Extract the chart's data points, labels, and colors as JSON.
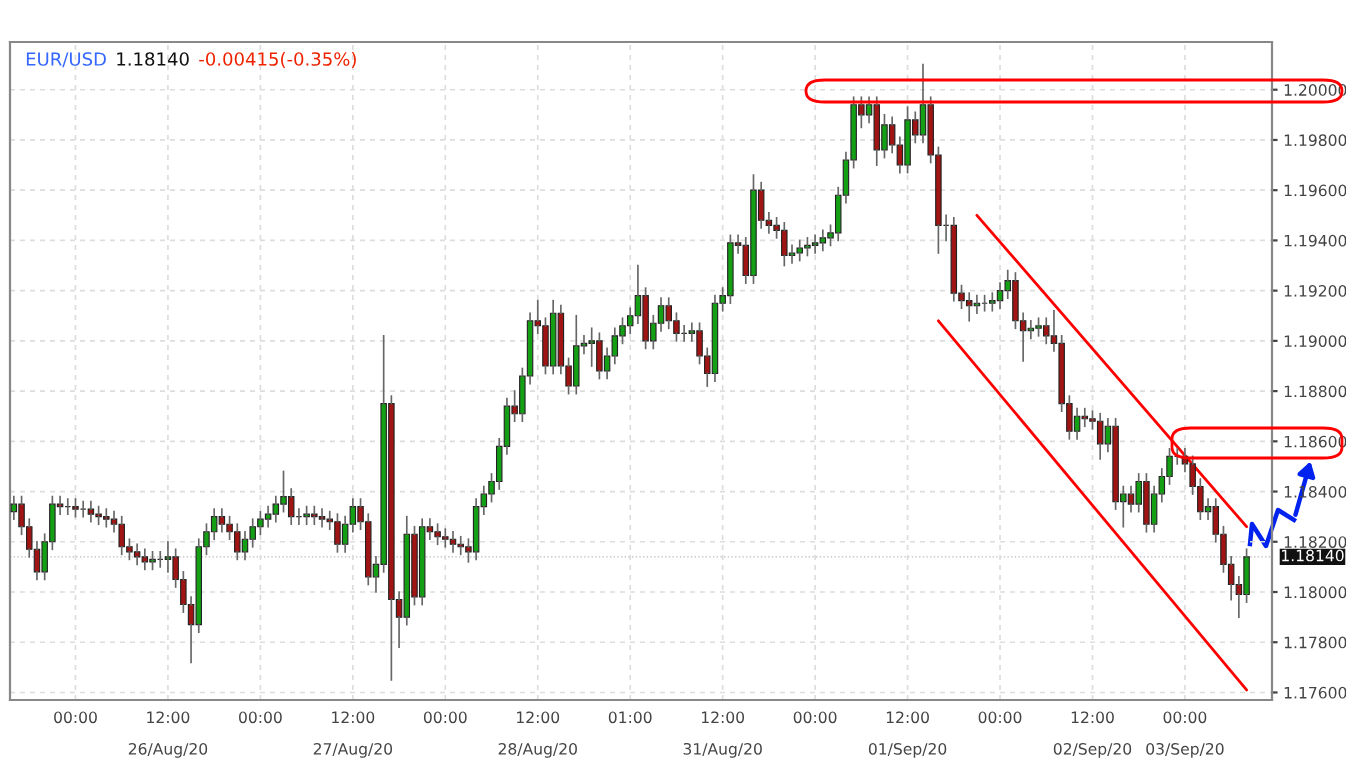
{
  "chart_data": {
    "type": "candlestick",
    "title": "EUR/USD",
    "subtitle": "1.18140",
    "annotations": [
      "-0.00415(-0.35%)"
    ],
    "categories": [
      null,
      null,
      null,
      null,
      null,
      null,
      null,
      null,
      "00:00",
      null,
      null,
      null,
      null,
      null,
      null,
      null,
      null,
      null,
      null,
      null,
      "12:00\n26/Aug/20",
      null,
      null,
      null,
      null,
      null,
      null,
      null,
      null,
      null,
      null,
      null,
      "00:00",
      null,
      null,
      null,
      null,
      null,
      null,
      null,
      null,
      null,
      null,
      null,
      "12:00\n27/Aug/20",
      null,
      null,
      null,
      null,
      null,
      null,
      null,
      null,
      null,
      null,
      null,
      "00:00",
      null,
      null,
      null,
      null,
      null,
      null,
      null,
      null,
      null,
      null,
      null,
      "12:00\n28/Aug/20",
      null,
      null,
      null,
      null,
      null,
      null,
      null,
      null,
      null,
      null,
      null,
      "01:00",
      null,
      null,
      null,
      null,
      null,
      null,
      null,
      null,
      null,
      null,
      null,
      "12:00\n31/Aug/20",
      null,
      null,
      null,
      null,
      null,
      null,
      null,
      null,
      null,
      null,
      null,
      "00:00",
      null,
      null,
      null,
      null,
      null,
      null,
      null,
      null,
      null,
      null,
      null,
      "12:00\n01/Sep/20",
      null,
      null,
      null,
      null,
      null,
      null,
      null,
      null,
      null,
      null,
      null,
      "00:00",
      null,
      null,
      null,
      null,
      null,
      null,
      null,
      null,
      null,
      null,
      null,
      "12:00\n02/Sep/20",
      null,
      null,
      null,
      null,
      null,
      null,
      null,
      null,
      null,
      null,
      null,
      "00:00\n03/Sep/20",
      null,
      null,
      null,
      null,
      null,
      null,
      null,
      null
    ],
    "ohlc": [
      [
        1.1832,
        1.1838,
        1.1829,
        1.1835
      ],
      [
        1.1835,
        1.1838,
        1.1823,
        1.1826
      ],
      [
        1.1826,
        1.1829,
        1.1814,
        1.1817
      ],
      [
        1.1817,
        1.182,
        1.1805,
        1.1808
      ],
      [
        1.1808,
        1.1823,
        1.1805,
        1.182
      ],
      [
        1.182,
        1.1838,
        1.1817,
        1.1835
      ],
      [
        1.1835,
        1.1838,
        1.1831,
        1.1834
      ],
      [
        1.1834,
        1.1837,
        1.1831,
        1.1834
      ],
      [
        1.1834,
        1.1837,
        1.183,
        1.1833
      ],
      [
        1.1833,
        1.1836,
        1.183,
        1.1833
      ],
      [
        1.1833,
        1.1836,
        1.1828,
        1.1831
      ],
      [
        1.1831,
        1.1834,
        1.1827,
        1.183
      ],
      [
        1.183,
        1.1833,
        1.1826,
        1.1829
      ],
      [
        1.1829,
        1.1832,
        1.1824,
        1.1827
      ],
      [
        1.1827,
        1.183,
        1.1815,
        1.1818
      ],
      [
        1.1818,
        1.1821,
        1.1813,
        1.1816
      ],
      [
        1.1816,
        1.1819,
        1.1811,
        1.1814
      ],
      [
        1.1814,
        1.1817,
        1.1809,
        1.1812
      ],
      [
        1.1812,
        1.1816,
        1.1809,
        1.1813
      ],
      [
        1.1813,
        1.1816,
        1.181,
        1.1813
      ],
      [
        1.1813,
        1.182,
        1.1808,
        1.1814
      ],
      [
        1.1814,
        1.1817,
        1.1802,
        1.1805
      ],
      [
        1.1805,
        1.1808,
        1.1792,
        1.1795
      ],
      [
        1.1795,
        1.1798,
        1.1772,
        1.1787
      ],
      [
        1.1787,
        1.1821,
        1.1784,
        1.1818
      ],
      [
        1.1818,
        1.1827,
        1.1815,
        1.1824
      ],
      [
        1.1824,
        1.1833,
        1.1821,
        1.183
      ],
      [
        1.183,
        1.1833,
        1.1824,
        1.1827
      ],
      [
        1.1827,
        1.183,
        1.1821,
        1.1824
      ],
      [
        1.1824,
        1.1827,
        1.1813,
        1.1816
      ],
      [
        1.1816,
        1.1824,
        1.1813,
        1.1821
      ],
      [
        1.1821,
        1.1829,
        1.1818,
        1.1826
      ],
      [
        1.1826,
        1.1832,
        1.1823,
        1.1829
      ],
      [
        1.1829,
        1.1834,
        1.1826,
        1.1831
      ],
      [
        1.1831,
        1.1838,
        1.1828,
        1.1835
      ],
      [
        1.1835,
        1.1848,
        1.1832,
        1.1838
      ],
      [
        1.1838,
        1.1841,
        1.1827,
        1.183
      ],
      [
        1.183,
        1.1833,
        1.1827,
        1.183
      ],
      [
        1.183,
        1.1834,
        1.1827,
        1.1831
      ],
      [
        1.1831,
        1.1834,
        1.1827,
        1.183
      ],
      [
        1.183,
        1.1833,
        1.1826,
        1.1829
      ],
      [
        1.1829,
        1.1832,
        1.1825,
        1.1828
      ],
      [
        1.1828,
        1.1831,
        1.1816,
        1.1819
      ],
      [
        1.1819,
        1.183,
        1.1816,
        1.1827
      ],
      [
        1.1827,
        1.1837,
        1.1824,
        1.1834
      ],
      [
        1.1834,
        1.1837,
        1.1825,
        1.1828
      ],
      [
        1.1828,
        1.1831,
        1.1803,
        1.1806
      ],
      [
        1.1806,
        1.1814,
        1.18,
        1.1811
      ],
      [
        1.1811,
        1.1902,
        1.1808,
        1.1875
      ],
      [
        1.1875,
        1.1878,
        1.1765,
        1.1797
      ],
      [
        1.1797,
        1.18,
        1.1778,
        1.179
      ],
      [
        1.179,
        1.183,
        1.1787,
        1.1823
      ],
      [
        1.1823,
        1.1826,
        1.1795,
        1.1798
      ],
      [
        1.1798,
        1.1829,
        1.1795,
        1.1826
      ],
      [
        1.1826,
        1.1829,
        1.1821,
        1.1824
      ],
      [
        1.1824,
        1.1827,
        1.1819,
        1.1822
      ],
      [
        1.1822,
        1.1825,
        1.1818,
        1.1821
      ],
      [
        1.1821,
        1.1824,
        1.1816,
        1.1819
      ],
      [
        1.1819,
        1.1822,
        1.1815,
        1.1818
      ],
      [
        1.1818,
        1.1821,
        1.1812,
        1.1816
      ],
      [
        1.1816,
        1.1837,
        1.1813,
        1.1834
      ],
      [
        1.1834,
        1.1842,
        1.1831,
        1.1839
      ],
      [
        1.1839,
        1.1847,
        1.1836,
        1.1844
      ],
      [
        1.1844,
        1.1861,
        1.1841,
        1.1858
      ],
      [
        1.1858,
        1.1877,
        1.1855,
        1.1874
      ],
      [
        1.1874,
        1.188,
        1.1868,
        1.1871
      ],
      [
        1.1871,
        1.1889,
        1.1868,
        1.1886
      ],
      [
        1.1886,
        1.1911,
        1.1883,
        1.1908
      ],
      [
        1.1908,
        1.1916,
        1.1903,
        1.1906
      ],
      [
        1.1906,
        1.1909,
        1.1887,
        1.189
      ],
      [
        1.189,
        1.1916,
        1.1887,
        1.1911
      ],
      [
        1.1911,
        1.1914,
        1.1887,
        1.189
      ],
      [
        1.189,
        1.1893,
        1.1879,
        1.1882
      ],
      [
        1.1882,
        1.191,
        1.1879,
        1.1898
      ],
      [
        1.1898,
        1.1902,
        1.1895,
        1.1899
      ],
      [
        1.1899,
        1.1905,
        1.189,
        1.19
      ],
      [
        1.19,
        1.1903,
        1.1885,
        1.1888
      ],
      [
        1.1888,
        1.1897,
        1.1885,
        1.1894
      ],
      [
        1.1894,
        1.1905,
        1.1891,
        1.1902
      ],
      [
        1.1902,
        1.1909,
        1.1899,
        1.1906
      ],
      [
        1.1906,
        1.1913,
        1.1903,
        1.191
      ],
      [
        1.191,
        1.193,
        1.1907,
        1.1918
      ],
      [
        1.1918,
        1.1921,
        1.1897,
        1.19
      ],
      [
        1.19,
        1.191,
        1.1897,
        1.1907
      ],
      [
        1.1907,
        1.1917,
        1.1904,
        1.1914
      ],
      [
        1.1914,
        1.1917,
        1.1905,
        1.1908
      ],
      [
        1.1908,
        1.1911,
        1.19,
        1.1903
      ],
      [
        1.1903,
        1.1906,
        1.19,
        1.1903
      ],
      [
        1.1903,
        1.1907,
        1.19,
        1.1904
      ],
      [
        1.1904,
        1.1907,
        1.1891,
        1.1894
      ],
      [
        1.1894,
        1.1897,
        1.1882,
        1.1887
      ],
      [
        1.1887,
        1.1918,
        1.1884,
        1.1915
      ],
      [
        1.1915,
        1.1921,
        1.1912,
        1.1918
      ],
      [
        1.1918,
        1.1942,
        1.1915,
        1.1939
      ],
      [
        1.1939,
        1.1942,
        1.1935,
        1.1938
      ],
      [
        1.1938,
        1.1941,
        1.1923,
        1.1926
      ],
      [
        1.1926,
        1.1966,
        1.1923,
        1.196
      ],
      [
        1.196,
        1.1963,
        1.1945,
        1.1948
      ],
      [
        1.1948,
        1.1951,
        1.1943,
        1.1946
      ],
      [
        1.1946,
        1.1949,
        1.1941,
        1.1944
      ],
      [
        1.1944,
        1.1947,
        1.193,
        1.1934
      ],
      [
        1.1934,
        1.1938,
        1.1931,
        1.1935
      ],
      [
        1.1935,
        1.194,
        1.1932,
        1.1937
      ],
      [
        1.1937,
        1.1941,
        1.1934,
        1.1938
      ],
      [
        1.1938,
        1.1942,
        1.1935,
        1.1939
      ],
      [
        1.1939,
        1.1944,
        1.1936,
        1.1941
      ],
      [
        1.1941,
        1.1946,
        1.1938,
        1.1943
      ],
      [
        1.1943,
        1.1961,
        1.194,
        1.1958
      ],
      [
        1.1958,
        1.1975,
        1.1955,
        1.1972
      ],
      [
        1.1972,
        1.1997,
        1.1969,
        1.1994
      ],
      [
        1.1994,
        1.1997,
        1.1985,
        1.199
      ],
      [
        1.199,
        1.1997,
        1.1987,
        1.1994
      ],
      [
        1.1994,
        1.1997,
        1.197,
        1.1976
      ],
      [
        1.1976,
        1.199,
        1.1973,
        1.1986
      ],
      [
        1.1986,
        1.1989,
        1.1975,
        1.1978
      ],
      [
        1.1978,
        1.1981,
        1.1967,
        1.197
      ],
      [
        1.197,
        1.1993,
        1.1967,
        1.1988
      ],
      [
        1.1988,
        1.1991,
        1.1979,
        1.1982
      ],
      [
        1.1982,
        1.201,
        1.1979,
        1.1994
      ],
      [
        1.1994,
        1.1997,
        1.1971,
        1.1974
      ],
      [
        1.1974,
        1.1977,
        1.1935,
        1.1946
      ],
      [
        1.1946,
        1.195,
        1.194,
        1.1946
      ],
      [
        1.1946,
        1.1949,
        1.1916,
        1.1919
      ],
      [
        1.1919,
        1.1922,
        1.1913,
        1.1916
      ],
      [
        1.1916,
        1.1919,
        1.1908,
        1.1914
      ],
      [
        1.1914,
        1.1918,
        1.1911,
        1.1915
      ],
      [
        1.1915,
        1.1918,
        1.1912,
        1.1915
      ],
      [
        1.1915,
        1.1919,
        1.1912,
        1.1916
      ],
      [
        1.1916,
        1.1923,
        1.1913,
        1.192
      ],
      [
        1.192,
        1.1928,
        1.1917,
        1.1924
      ],
      [
        1.1924,
        1.1927,
        1.1905,
        1.1908
      ],
      [
        1.1908,
        1.1911,
        1.1892,
        1.1904
      ],
      [
        1.1904,
        1.1908,
        1.1901,
        1.1905
      ],
      [
        1.1905,
        1.1909,
        1.1902,
        1.1906
      ],
      [
        1.1906,
        1.1909,
        1.1899,
        1.1902
      ],
      [
        1.1902,
        1.1912,
        1.1896,
        1.1899
      ],
      [
        1.1899,
        1.1902,
        1.1872,
        1.1875
      ],
      [
        1.1875,
        1.1878,
        1.1861,
        1.1864
      ],
      [
        1.1864,
        1.1873,
        1.1861,
        1.187
      ],
      [
        1.187,
        1.1873,
        1.1866,
        1.1869
      ],
      [
        1.1869,
        1.1872,
        1.1865,
        1.1868
      ],
      [
        1.1868,
        1.1871,
        1.1853,
        1.1859
      ],
      [
        1.1859,
        1.1869,
        1.1856,
        1.1866
      ],
      [
        1.1866,
        1.1869,
        1.1833,
        1.1836
      ],
      [
        1.1836,
        1.1842,
        1.1826,
        1.1839
      ],
      [
        1.1839,
        1.1842,
        1.1832,
        1.1835
      ],
      [
        1.1835,
        1.1847,
        1.1832,
        1.1844
      ],
      [
        1.1844,
        1.1847,
        1.1824,
        1.1827
      ],
      [
        1.1827,
        1.1842,
        1.1824,
        1.1839
      ],
      [
        1.1839,
        1.1849,
        1.1836,
        1.1846
      ],
      [
        1.1846,
        1.1857,
        1.1843,
        1.1854
      ],
      [
        1.1854,
        1.1857,
        1.1851,
        1.1854
      ],
      [
        1.1854,
        1.1857,
        1.1848,
        1.1851
      ],
      [
        1.1851,
        1.1854,
        1.1839,
        1.1842
      ],
      [
        1.1842,
        1.1845,
        1.1829,
        1.1832
      ],
      [
        1.1832,
        1.1837,
        1.1829,
        1.1834
      ],
      [
        1.1834,
        1.1837,
        1.182,
        1.1823
      ],
      [
        1.1823,
        1.1826,
        1.1808,
        1.1811
      ],
      [
        1.1811,
        1.1814,
        1.1797,
        1.1803
      ],
      [
        1.1803,
        1.1806,
        1.179,
        1.1799
      ],
      [
        1.1799,
        1.1817,
        1.1796,
        1.1814
      ]
    ],
    "series": [
      {
        "type": "line",
        "color": "#ff0000",
        "values": [
          null,
          null,
          null,
          null,
          null,
          null,
          null,
          null,
          null,
          null,
          null,
          null,
          null,
          null,
          null,
          null,
          null,
          null,
          null,
          null,
          null,
          null,
          null,
          null,
          null,
          null,
          null,
          null,
          null,
          null,
          null,
          null,
          null,
          null,
          null,
          null,
          null,
          null,
          null,
          null,
          null,
          null,
          null,
          null,
          null,
          null,
          null,
          null,
          null,
          null,
          null,
          null,
          null,
          null,
          null,
          null,
          null,
          null,
          null,
          null,
          null,
          null,
          null,
          null,
          null,
          null,
          null,
          null,
          null,
          null,
          null,
          null,
          null,
          null,
          null,
          null,
          null,
          null,
          null,
          null,
          null,
          null,
          null,
          null,
          null,
          null,
          null,
          null,
          null,
          null,
          null,
          null,
          null,
          null,
          null,
          null,
          null,
          null,
          null,
          null,
          null,
          null,
          null,
          null,
          null,
          null,
          null,
          null,
          null,
          null,
          null,
          null,
          null,
          null,
          null,
          null,
          null,
          null,
          null,
          null,
          null,
          null,
          null,
          null,
          null,
          1.195,
          null,
          null,
          null,
          null,
          null,
          null,
          null,
          null,
          null,
          null,
          null,
          null,
          null,
          null,
          null,
          null,
          null,
          null,
          null,
          null,
          null,
          null,
          null,
          null,
          null,
          null,
          null,
          null,
          null,
          null,
          null,
          null,
          null,
          null,
          1.1826
        ]
      },
      {
        "type": "line",
        "color": "#ff0000",
        "values": [
          null,
          null,
          null,
          null,
          null,
          null,
          null,
          null,
          null,
          null,
          null,
          null,
          null,
          null,
          null,
          null,
          null,
          null,
          null,
          null,
          null,
          null,
          null,
          null,
          null,
          null,
          null,
          null,
          null,
          null,
          null,
          null,
          null,
          null,
          null,
          null,
          null,
          null,
          null,
          null,
          null,
          null,
          null,
          null,
          null,
          null,
          null,
          null,
          null,
          null,
          null,
          null,
          null,
          null,
          null,
          null,
          null,
          null,
          null,
          null,
          null,
          null,
          null,
          null,
          null,
          null,
          null,
          null,
          null,
          null,
          null,
          null,
          null,
          null,
          null,
          null,
          null,
          null,
          null,
          null,
          null,
          null,
          null,
          null,
          null,
          null,
          null,
          null,
          null,
          null,
          null,
          null,
          null,
          null,
          null,
          null,
          null,
          null,
          null,
          null,
          null,
          null,
          null,
          null,
          null,
          null,
          null,
          null,
          null,
          null,
          null,
          null,
          null,
          null,
          null,
          null,
          null,
          null,
          null,
          null,
          1.1908,
          null,
          null,
          null,
          null,
          null,
          null,
          null,
          null,
          null,
          null,
          null,
          null,
          null,
          null,
          null,
          null,
          null,
          null,
          null,
          null,
          null,
          null,
          null,
          null,
          null,
          null,
          null,
          null,
          null,
          null,
          null,
          null,
          null,
          null,
          null,
          null,
          null,
          null,
          null,
          1.1761
        ]
      }
    ],
    "ref_lines": [
      {
        "axis": "y",
        "value": 1.1814,
        "label": "1.18140"
      }
    ],
    "ylim": [
      1.1757,
      1.2019
    ],
    "yticks": [
      {
        "value": 1.176,
        "label": "1.17600"
      },
      {
        "value": 1.178,
        "label": "1.17800"
      },
      {
        "value": 1.18,
        "label": "1.18000"
      },
      {
        "value": 1.182,
        "label": "1.18200"
      },
      {
        "value": 1.184,
        "label": "1.18400"
      },
      {
        "value": 1.186,
        "label": "1.18600"
      },
      {
        "value": 1.188,
        "label": "1.18800"
      },
      {
        "value": 1.19,
        "label": "1.19000"
      },
      {
        "value": 1.192,
        "label": "1.19200"
      },
      {
        "value": 1.194,
        "label": "1.19400"
      },
      {
        "value": 1.196,
        "label": "1.19600"
      },
      {
        "value": 1.198,
        "label": "1.19800"
      },
      {
        "value": 1.2,
        "label": "1.20000"
      }
    ],
    "grid": true,
    "legend": false
  }
}
